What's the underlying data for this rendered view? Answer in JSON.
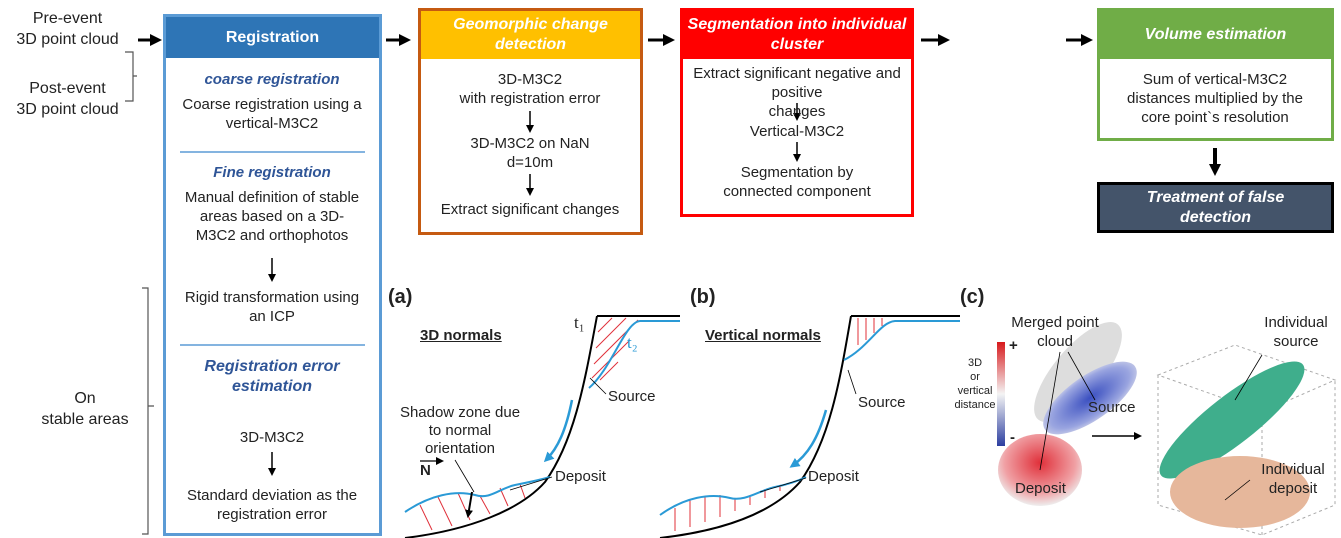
{
  "inputs": {
    "pre_event": [
      "Pre-event",
      "3D point cloud"
    ],
    "post_event": [
      "Post-event",
      "3D point cloud"
    ]
  },
  "registration": {
    "title": "Registration",
    "coarse_heading": "coarse registration",
    "coarse_step": [
      "Coarse registration using a",
      "vertical-M3C2"
    ],
    "fine_heading": "Fine registration",
    "fine_step_1": [
      "Manual definition of stable",
      "areas based on a 3D-",
      "M3C2 and orthophotos"
    ],
    "fine_step_2": [
      "Rigid transformation using",
      "an ICP"
    ],
    "error_heading": [
      "Registration error",
      "estimation"
    ],
    "error_step_1": "3D-M3C2",
    "error_step_2": [
      "Standard deviation as the",
      "registration error"
    ]
  },
  "stable_areas": [
    "On",
    "stable areas"
  ],
  "change_detection": {
    "title": [
      "Geomorphic change",
      "detection"
    ],
    "steps": [
      [
        "3D-M3C2",
        "with registration error"
      ],
      [
        "3D-M3C2 on NaN",
        "d=10m"
      ],
      "Extract significant changes"
    ]
  },
  "segmentation": {
    "title": [
      "Segmentation into individual",
      "cluster"
    ],
    "steps": [
      [
        "Extract significant negative and positive",
        "changes"
      ],
      "Vertical-M3C2",
      [
        "Segmentation by",
        "connected component"
      ]
    ]
  },
  "volume": {
    "title": "Volume estimation",
    "step": [
      "Sum of vertical-M3C2",
      "distances multiplied by the",
      "core point`s resolution"
    ]
  },
  "treatment": [
    "Treatment of false",
    "detection"
  ],
  "panel_a": {
    "label": "(a)",
    "title": "3D normals",
    "t1": "t₁",
    "t2": "t₂",
    "source": "Source",
    "shadow": [
      "Shadow zone due",
      "to normal",
      "orientation"
    ],
    "normal": "N",
    "deposit": "Deposit"
  },
  "panel_b": {
    "label": "(b)",
    "title": "Vertical normals",
    "source": "Source",
    "deposit": "Deposit"
  },
  "panel_c": {
    "label": "(c)",
    "merged": [
      "Merged point",
      "cloud"
    ],
    "scale": [
      "3D",
      "or",
      "vertical",
      "distance"
    ],
    "plus": "+",
    "minus": "-",
    "source": "Source",
    "deposit": "Deposit",
    "individual_source": [
      "Individual",
      "source"
    ],
    "individual_deposit": [
      "Individual",
      "deposit"
    ]
  }
}
